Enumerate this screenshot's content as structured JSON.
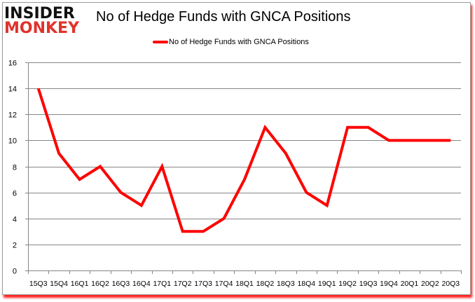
{
  "logo": {
    "line1": "INSIDER",
    "line2": "MONKEY"
  },
  "title": "No of Hedge Funds with GNCA Positions",
  "legend": {
    "label": "No of Hedge Funds with GNCA Positions",
    "color": "#ff0000"
  },
  "chart_data": {
    "type": "line",
    "title": "No of Hedge Funds with GNCA Positions",
    "xlabel": "",
    "ylabel": "",
    "categories": [
      "15Q3",
      "15Q4",
      "16Q1",
      "16Q2",
      "16Q3",
      "16Q4",
      "17Q1",
      "17Q2",
      "17Q3",
      "17Q4",
      "18Q1",
      "18Q2",
      "18Q3",
      "18Q4",
      "19Q1",
      "19Q2",
      "19Q3",
      "19Q4",
      "20Q1",
      "20Q2",
      "20Q3"
    ],
    "series": [
      {
        "name": "No of Hedge Funds with GNCA Positions",
        "color": "#ff0000",
        "values": [
          14,
          9,
          7,
          8,
          6,
          5,
          8,
          3,
          3,
          4,
          7,
          11,
          9,
          6,
          5,
          11,
          11,
          10,
          10,
          10,
          10
        ]
      }
    ],
    "ylim": [
      0,
      16
    ],
    "yticks": [
      0,
      2,
      4,
      6,
      8,
      10,
      12,
      14,
      16
    ],
    "grid": true,
    "legend_position": "top"
  }
}
